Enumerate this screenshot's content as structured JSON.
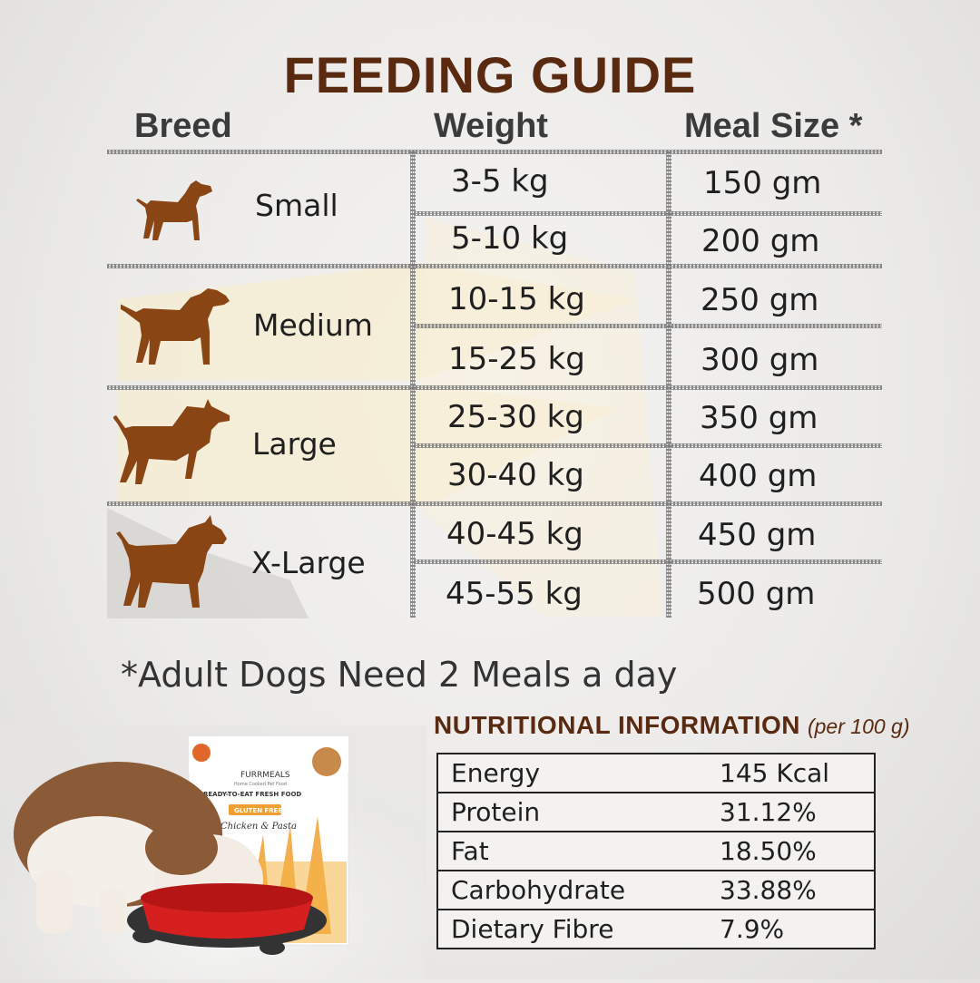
{
  "title": "FEEDING GUIDE",
  "headers": {
    "breed": "Breed",
    "weight": "Weight",
    "meal_size": "Meal Size *"
  },
  "groups": [
    {
      "breed": "Small",
      "icon": "small-dog-icon",
      "rows": [
        {
          "weight": "3-5 kg",
          "meal": "150 gm"
        },
        {
          "weight": "5-10 kg",
          "meal": "200 gm"
        }
      ]
    },
    {
      "breed": "Medium",
      "icon": "medium-dog-icon",
      "rows": [
        {
          "weight": "10-15 kg",
          "meal": "250 gm"
        },
        {
          "weight": "15-25 kg",
          "meal": "300 gm"
        }
      ]
    },
    {
      "breed": "Large",
      "icon": "large-dog-icon",
      "rows": [
        {
          "weight": "25-30 kg",
          "meal": "350 gm"
        },
        {
          "weight": "30-40 kg",
          "meal": "400 gm"
        }
      ]
    },
    {
      "breed": "X-Large",
      "icon": "xlarge-dog-icon",
      "rows": [
        {
          "weight": "40-45 kg",
          "meal": "450 gm"
        },
        {
          "weight": "45-55 kg",
          "meal": "500 gm"
        }
      ]
    }
  ],
  "footnote": "*Adult Dogs Need 2 Meals a day",
  "nutrition": {
    "title": "NUTRITIONAL INFORMATION",
    "subtitle": "(per 100 g)",
    "rows": [
      {
        "label": "Energy",
        "value": "145 Kcal"
      },
      {
        "label": "Protein",
        "value": "31.12%"
      },
      {
        "label": "Fat",
        "value": "18.50%"
      },
      {
        "label": "Carbohydrate",
        "value": "33.88%"
      },
      {
        "label": "Dietary Fibre",
        "value": "7.9%"
      }
    ]
  },
  "product": {
    "brand": "FURRMEALS",
    "tagline": "Home Cooked Pet Food",
    "line": "READY-TO-EAT FRESH FOOD",
    "badge": "GLUTEN FREE",
    "flavor": "Chicken & Pasta"
  },
  "colors": {
    "title": "#5a2a10",
    "dog": "#8a4514",
    "beam": "#f6efd9",
    "accent": "#e8962a"
  }
}
